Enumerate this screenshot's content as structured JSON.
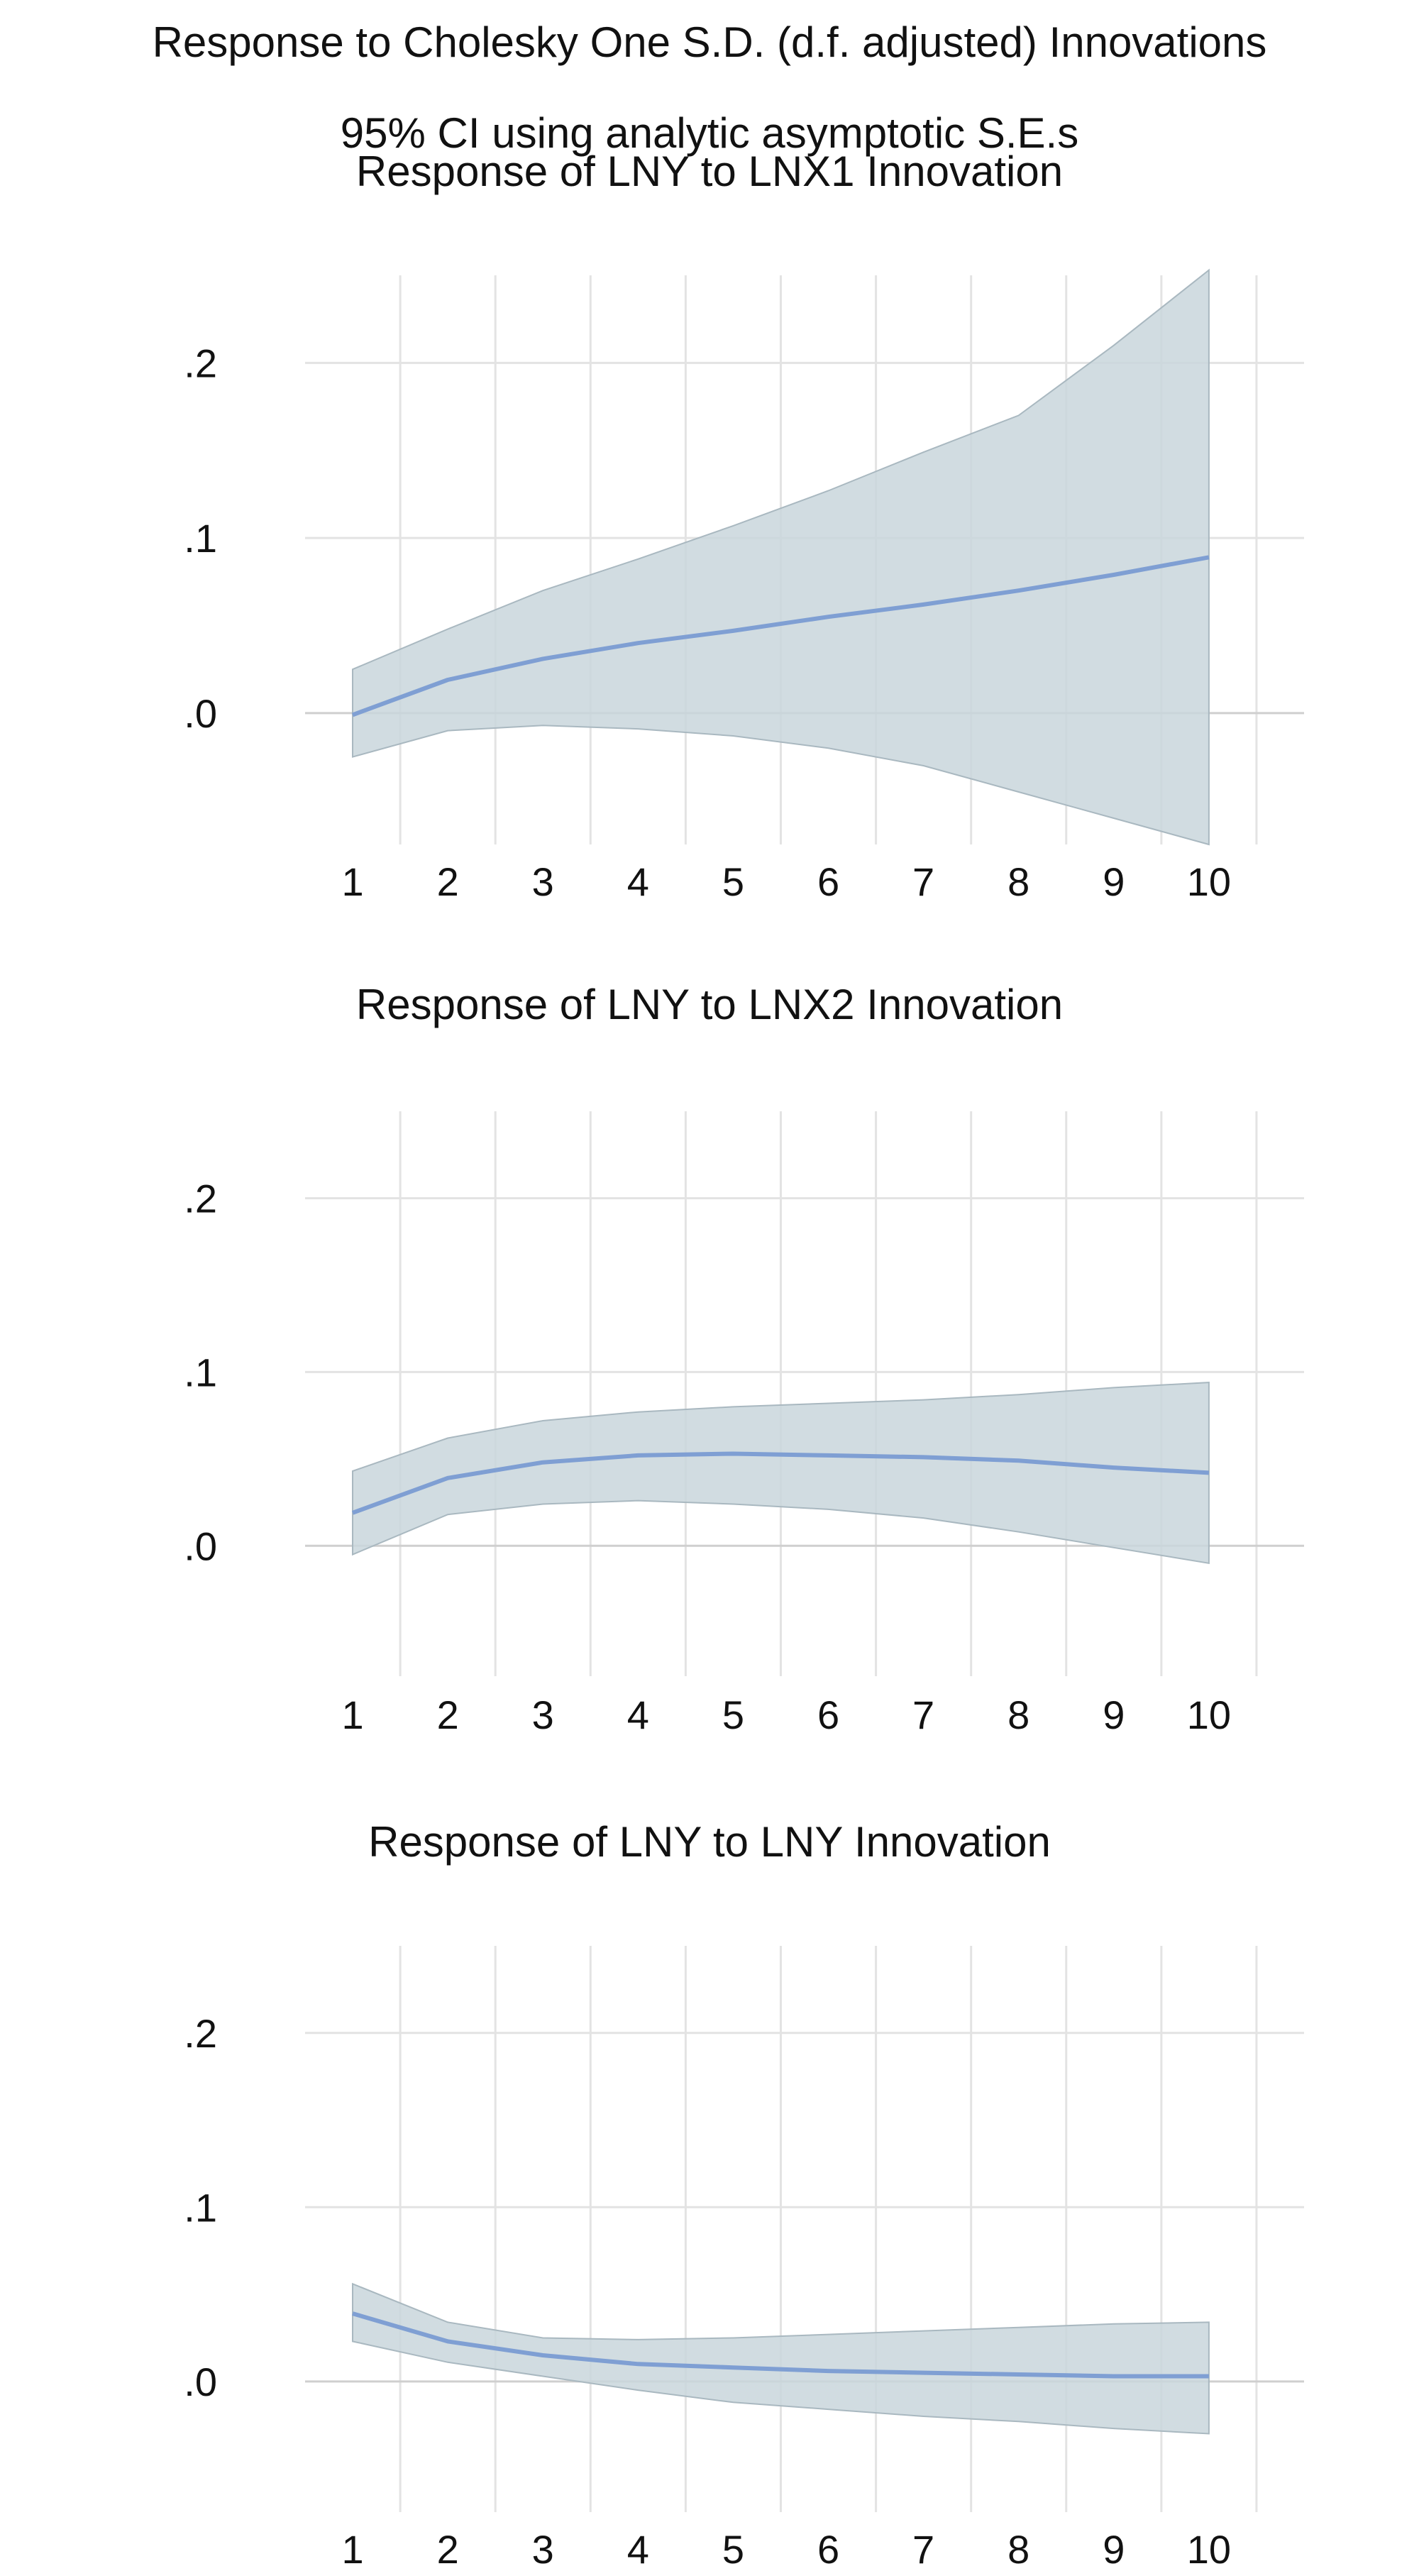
{
  "figure": {
    "title": "Response to Cholesky One S.D. (d.f. adjusted) Innovations",
    "subtitle": "95% CI using analytic asymptotic S.E.s"
  },
  "colors": {
    "line": "#7f9fd3",
    "band_fill": "#c9d6dc",
    "band_edge": "#a9b8c0",
    "grid": "#e3e3e3",
    "zero_line": "#cfcfcf"
  },
  "chart_data": [
    {
      "type": "line",
      "title": "Response of LNY to LNX1 Innovation",
      "x": [
        1,
        2,
        3,
        4,
        5,
        6,
        7,
        8,
        9,
        10
      ],
      "xlim": [
        0.5,
        11
      ],
      "ylim": [
        -0.075,
        0.25
      ],
      "yticks": [
        0.0,
        0.1,
        0.2
      ],
      "ytick_labels": [
        ".0",
        ".1",
        ".2"
      ],
      "xtick_labels": [
        "1",
        "2",
        "3",
        "4",
        "5",
        "6",
        "7",
        "8",
        "9",
        "10"
      ],
      "series": [
        {
          "name": "response",
          "values": [
            -0.001,
            0.019,
            0.031,
            0.04,
            0.047,
            0.055,
            0.062,
            0.07,
            0.079,
            0.089
          ]
        },
        {
          "name": "upper 95% CI",
          "values": [
            0.025,
            0.048,
            0.07,
            0.088,
            0.107,
            0.127,
            0.149,
            0.17,
            0.21,
            0.253
          ]
        },
        {
          "name": "lower 95% CI",
          "values": [
            -0.025,
            -0.01,
            -0.007,
            -0.009,
            -0.013,
            -0.02,
            -0.03,
            -0.045,
            -0.06,
            -0.075
          ]
        }
      ]
    },
    {
      "type": "line",
      "title": "Response of LNY to LNX2 Innovation",
      "x": [
        1,
        2,
        3,
        4,
        5,
        6,
        7,
        8,
        9,
        10
      ],
      "xlim": [
        0.5,
        11
      ],
      "ylim": [
        -0.075,
        0.25
      ],
      "yticks": [
        0.0,
        0.1,
        0.2
      ],
      "ytick_labels": [
        ".0",
        ".1",
        ".2"
      ],
      "xtick_labels": [
        "1",
        "2",
        "3",
        "4",
        "5",
        "6",
        "7",
        "8",
        "9",
        "10"
      ],
      "series": [
        {
          "name": "response",
          "values": [
            0.019,
            0.039,
            0.048,
            0.052,
            0.053,
            0.052,
            0.051,
            0.049,
            0.045,
            0.042
          ]
        },
        {
          "name": "upper 95% CI",
          "values": [
            0.043,
            0.062,
            0.072,
            0.077,
            0.08,
            0.082,
            0.084,
            0.087,
            0.091,
            0.094
          ]
        },
        {
          "name": "lower 95% CI",
          "values": [
            -0.005,
            0.018,
            0.024,
            0.026,
            0.024,
            0.021,
            0.016,
            0.008,
            -0.001,
            -0.01
          ]
        }
      ]
    },
    {
      "type": "line",
      "title": "Response of LNY to LNY Innovation",
      "x": [
        1,
        2,
        3,
        4,
        5,
        6,
        7,
        8,
        9,
        10
      ],
      "xlim": [
        0.5,
        11
      ],
      "ylim": [
        -0.075,
        0.25
      ],
      "yticks": [
        0.0,
        0.1,
        0.2
      ],
      "ytick_labels": [
        ".0",
        ".1",
        ".2"
      ],
      "xtick_labels": [
        "1",
        "2",
        "3",
        "4",
        "5",
        "6",
        "7",
        "8",
        "9",
        "10"
      ],
      "series": [
        {
          "name": "response",
          "values": [
            0.039,
            0.023,
            0.015,
            0.01,
            0.008,
            0.006,
            0.005,
            0.004,
            0.003,
            0.003
          ]
        },
        {
          "name": "upper 95% CI",
          "values": [
            0.056,
            0.034,
            0.025,
            0.024,
            0.025,
            0.027,
            0.029,
            0.031,
            0.033,
            0.034
          ]
        },
        {
          "name": "lower 95% CI",
          "values": [
            0.023,
            0.011,
            0.003,
            -0.005,
            -0.012,
            -0.016,
            -0.02,
            -0.023,
            -0.027,
            -0.03
          ]
        }
      ]
    }
  ]
}
